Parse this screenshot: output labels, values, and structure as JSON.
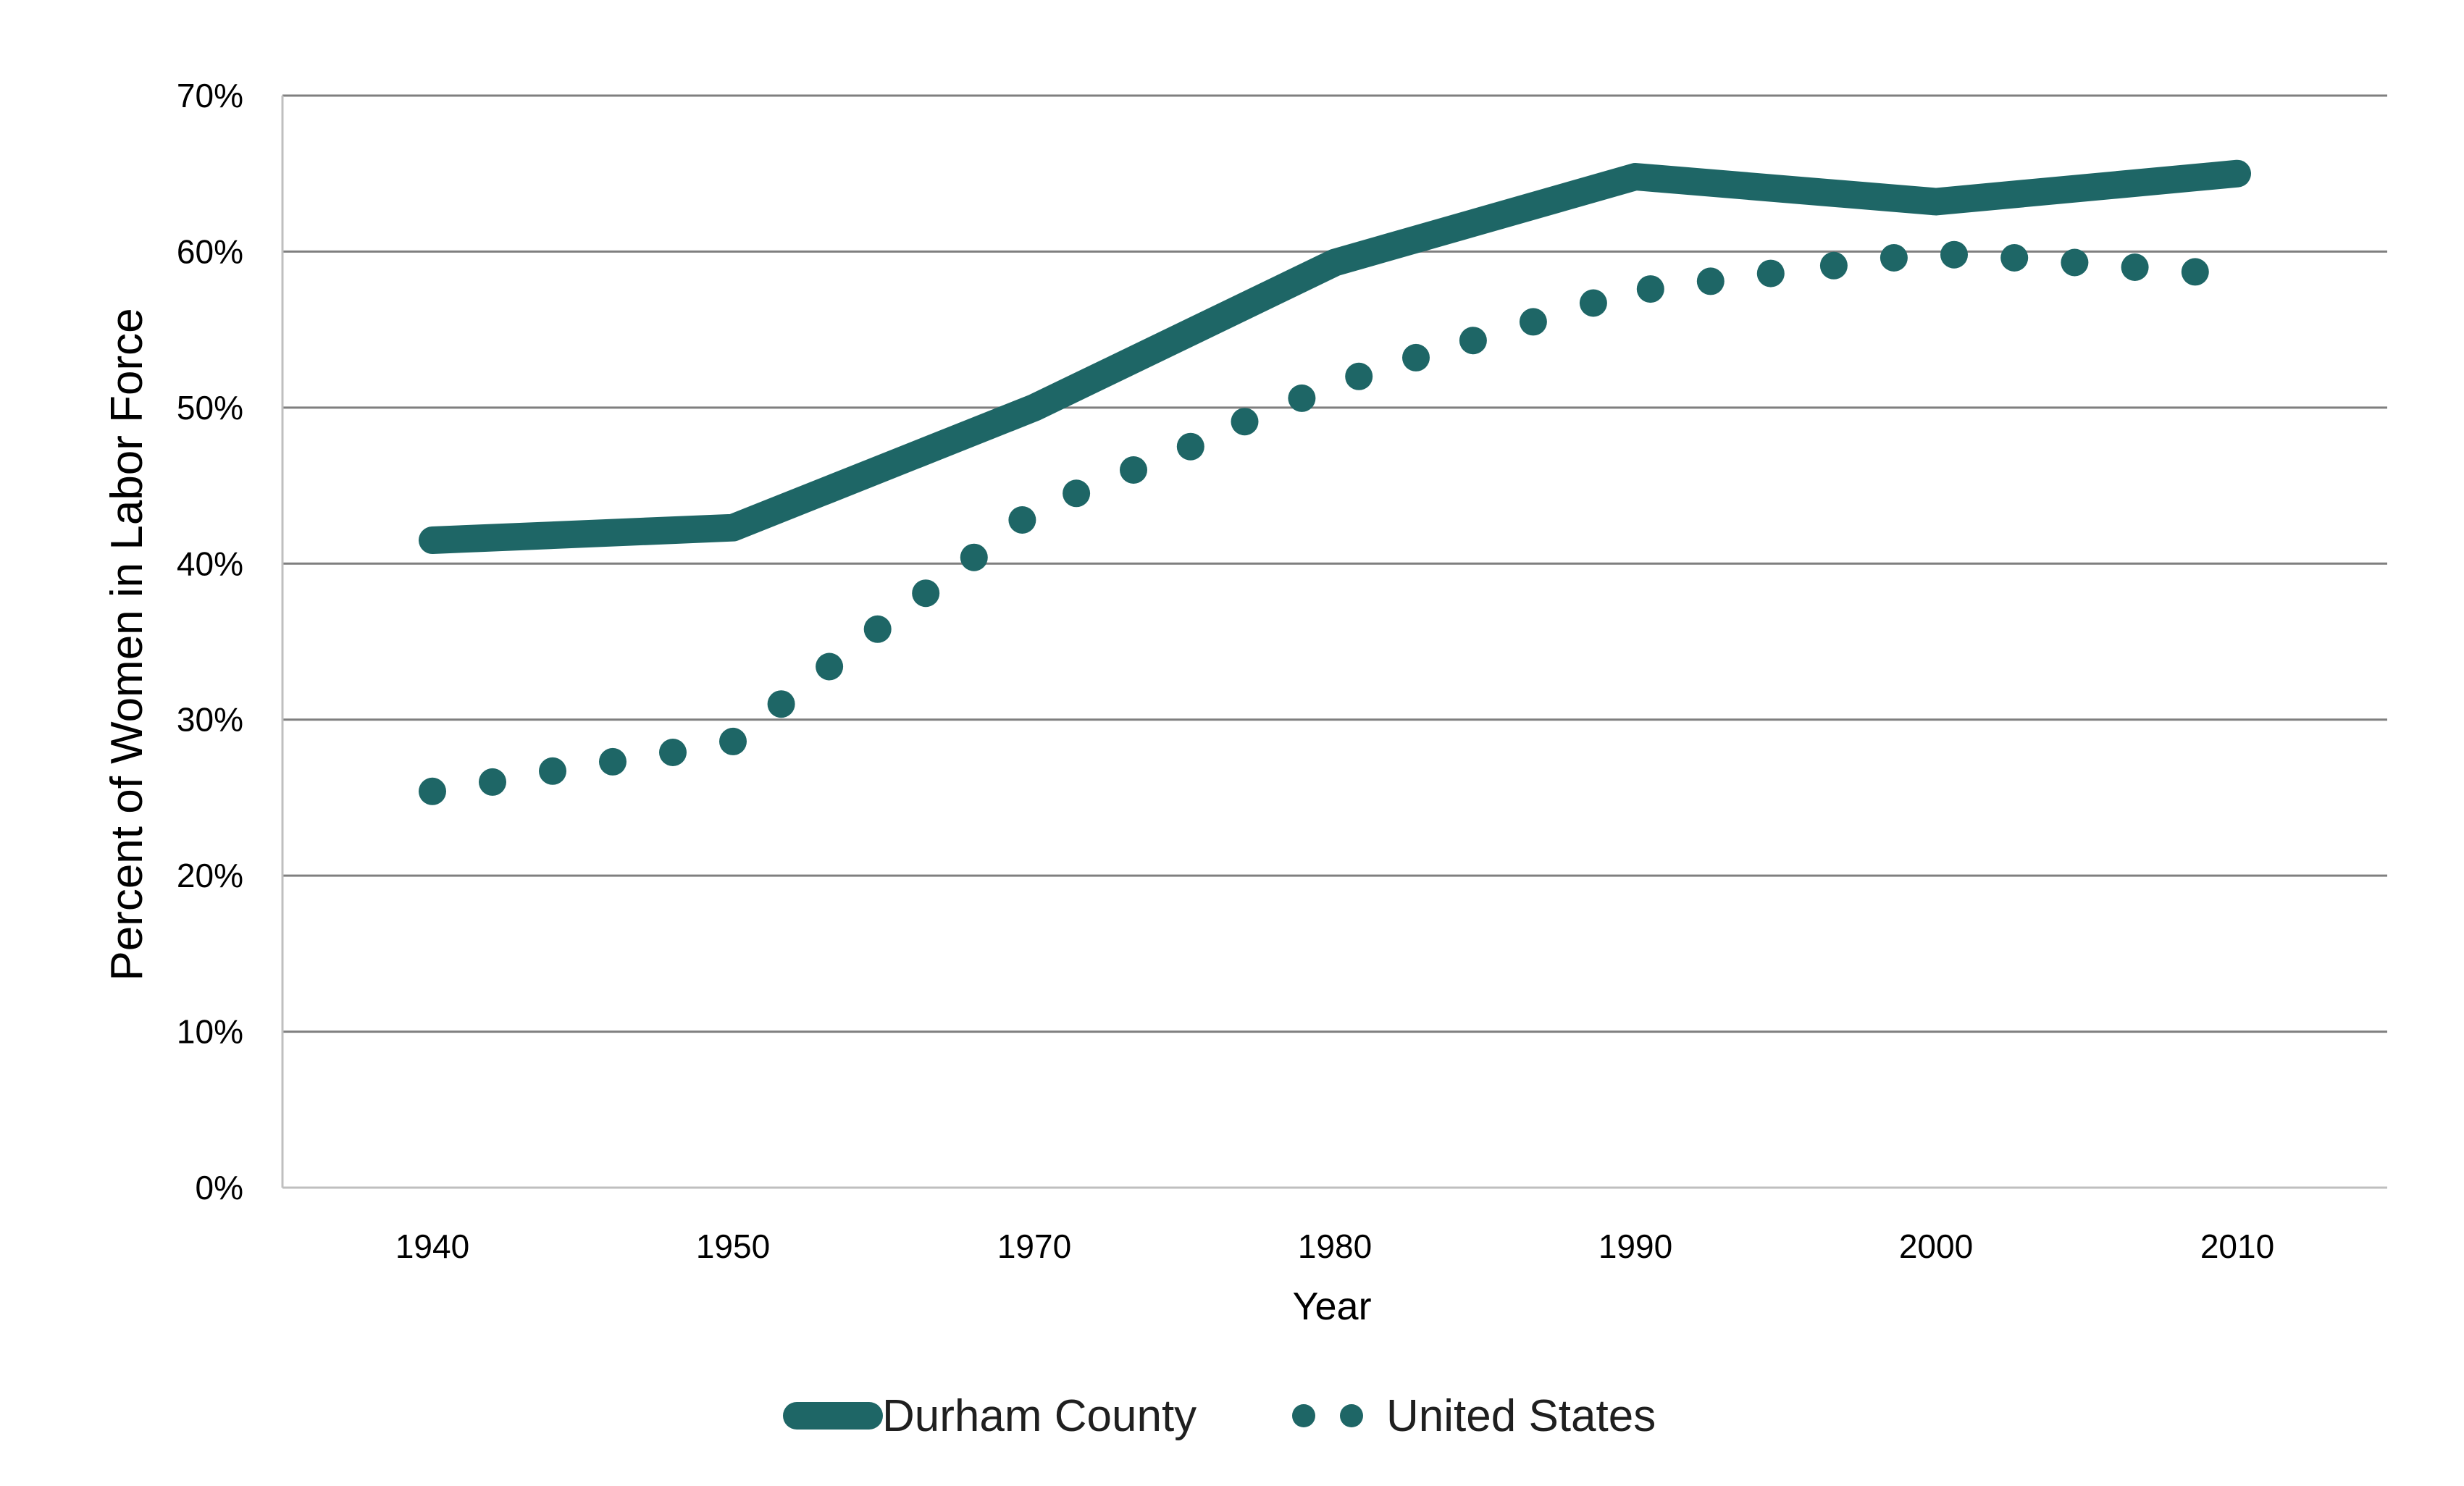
{
  "chart_data": {
    "type": "line",
    "title": "",
    "xlabel": "Year",
    "ylabel": "Percent of Women in Labor Force",
    "ylim": [
      0,
      70
    ],
    "yticks": [
      "0%",
      "10%",
      "20%",
      "30%",
      "40%",
      "50%",
      "60%",
      "70%"
    ],
    "categories": [
      "1940",
      "1950",
      "1970",
      "1980",
      "1990",
      "2000",
      "2010"
    ],
    "grid": "horizontal",
    "legend_position": "bottom",
    "series": [
      {
        "name": "Durham County",
        "style": "solid-thick",
        "color": "#1e6666",
        "x": [
          0,
          1,
          2,
          3,
          4,
          5,
          6
        ],
        "values": [
          41.5,
          42.3,
          50.0,
          59.3,
          64.8,
          63.2,
          65.0
        ]
      },
      {
        "name": "United States",
        "style": "dotted",
        "color": "#1e6666",
        "x": [
          0,
          0.2,
          0.4,
          0.6,
          0.8,
          1.0,
          1.16,
          1.32,
          1.48,
          1.64,
          1.8,
          1.96,
          2.14,
          2.33,
          2.52,
          2.7,
          2.89,
          3.08,
          3.27,
          3.46,
          3.66,
          3.86,
          4.05,
          4.25,
          4.45,
          4.66,
          4.86,
          5.06,
          5.26,
          5.46,
          5.66,
          5.86
        ],
        "values": [
          25.4,
          26.0,
          26.7,
          27.3,
          27.9,
          28.6,
          31.0,
          33.4,
          35.8,
          38.1,
          40.4,
          42.8,
          44.5,
          46.0,
          47.5,
          49.1,
          50.6,
          52.0,
          53.2,
          54.3,
          55.5,
          56.7,
          57.6,
          58.1,
          58.6,
          59.1,
          59.6,
          59.8,
          59.6,
          59.3,
          59.0,
          58.7
        ]
      }
    ]
  }
}
